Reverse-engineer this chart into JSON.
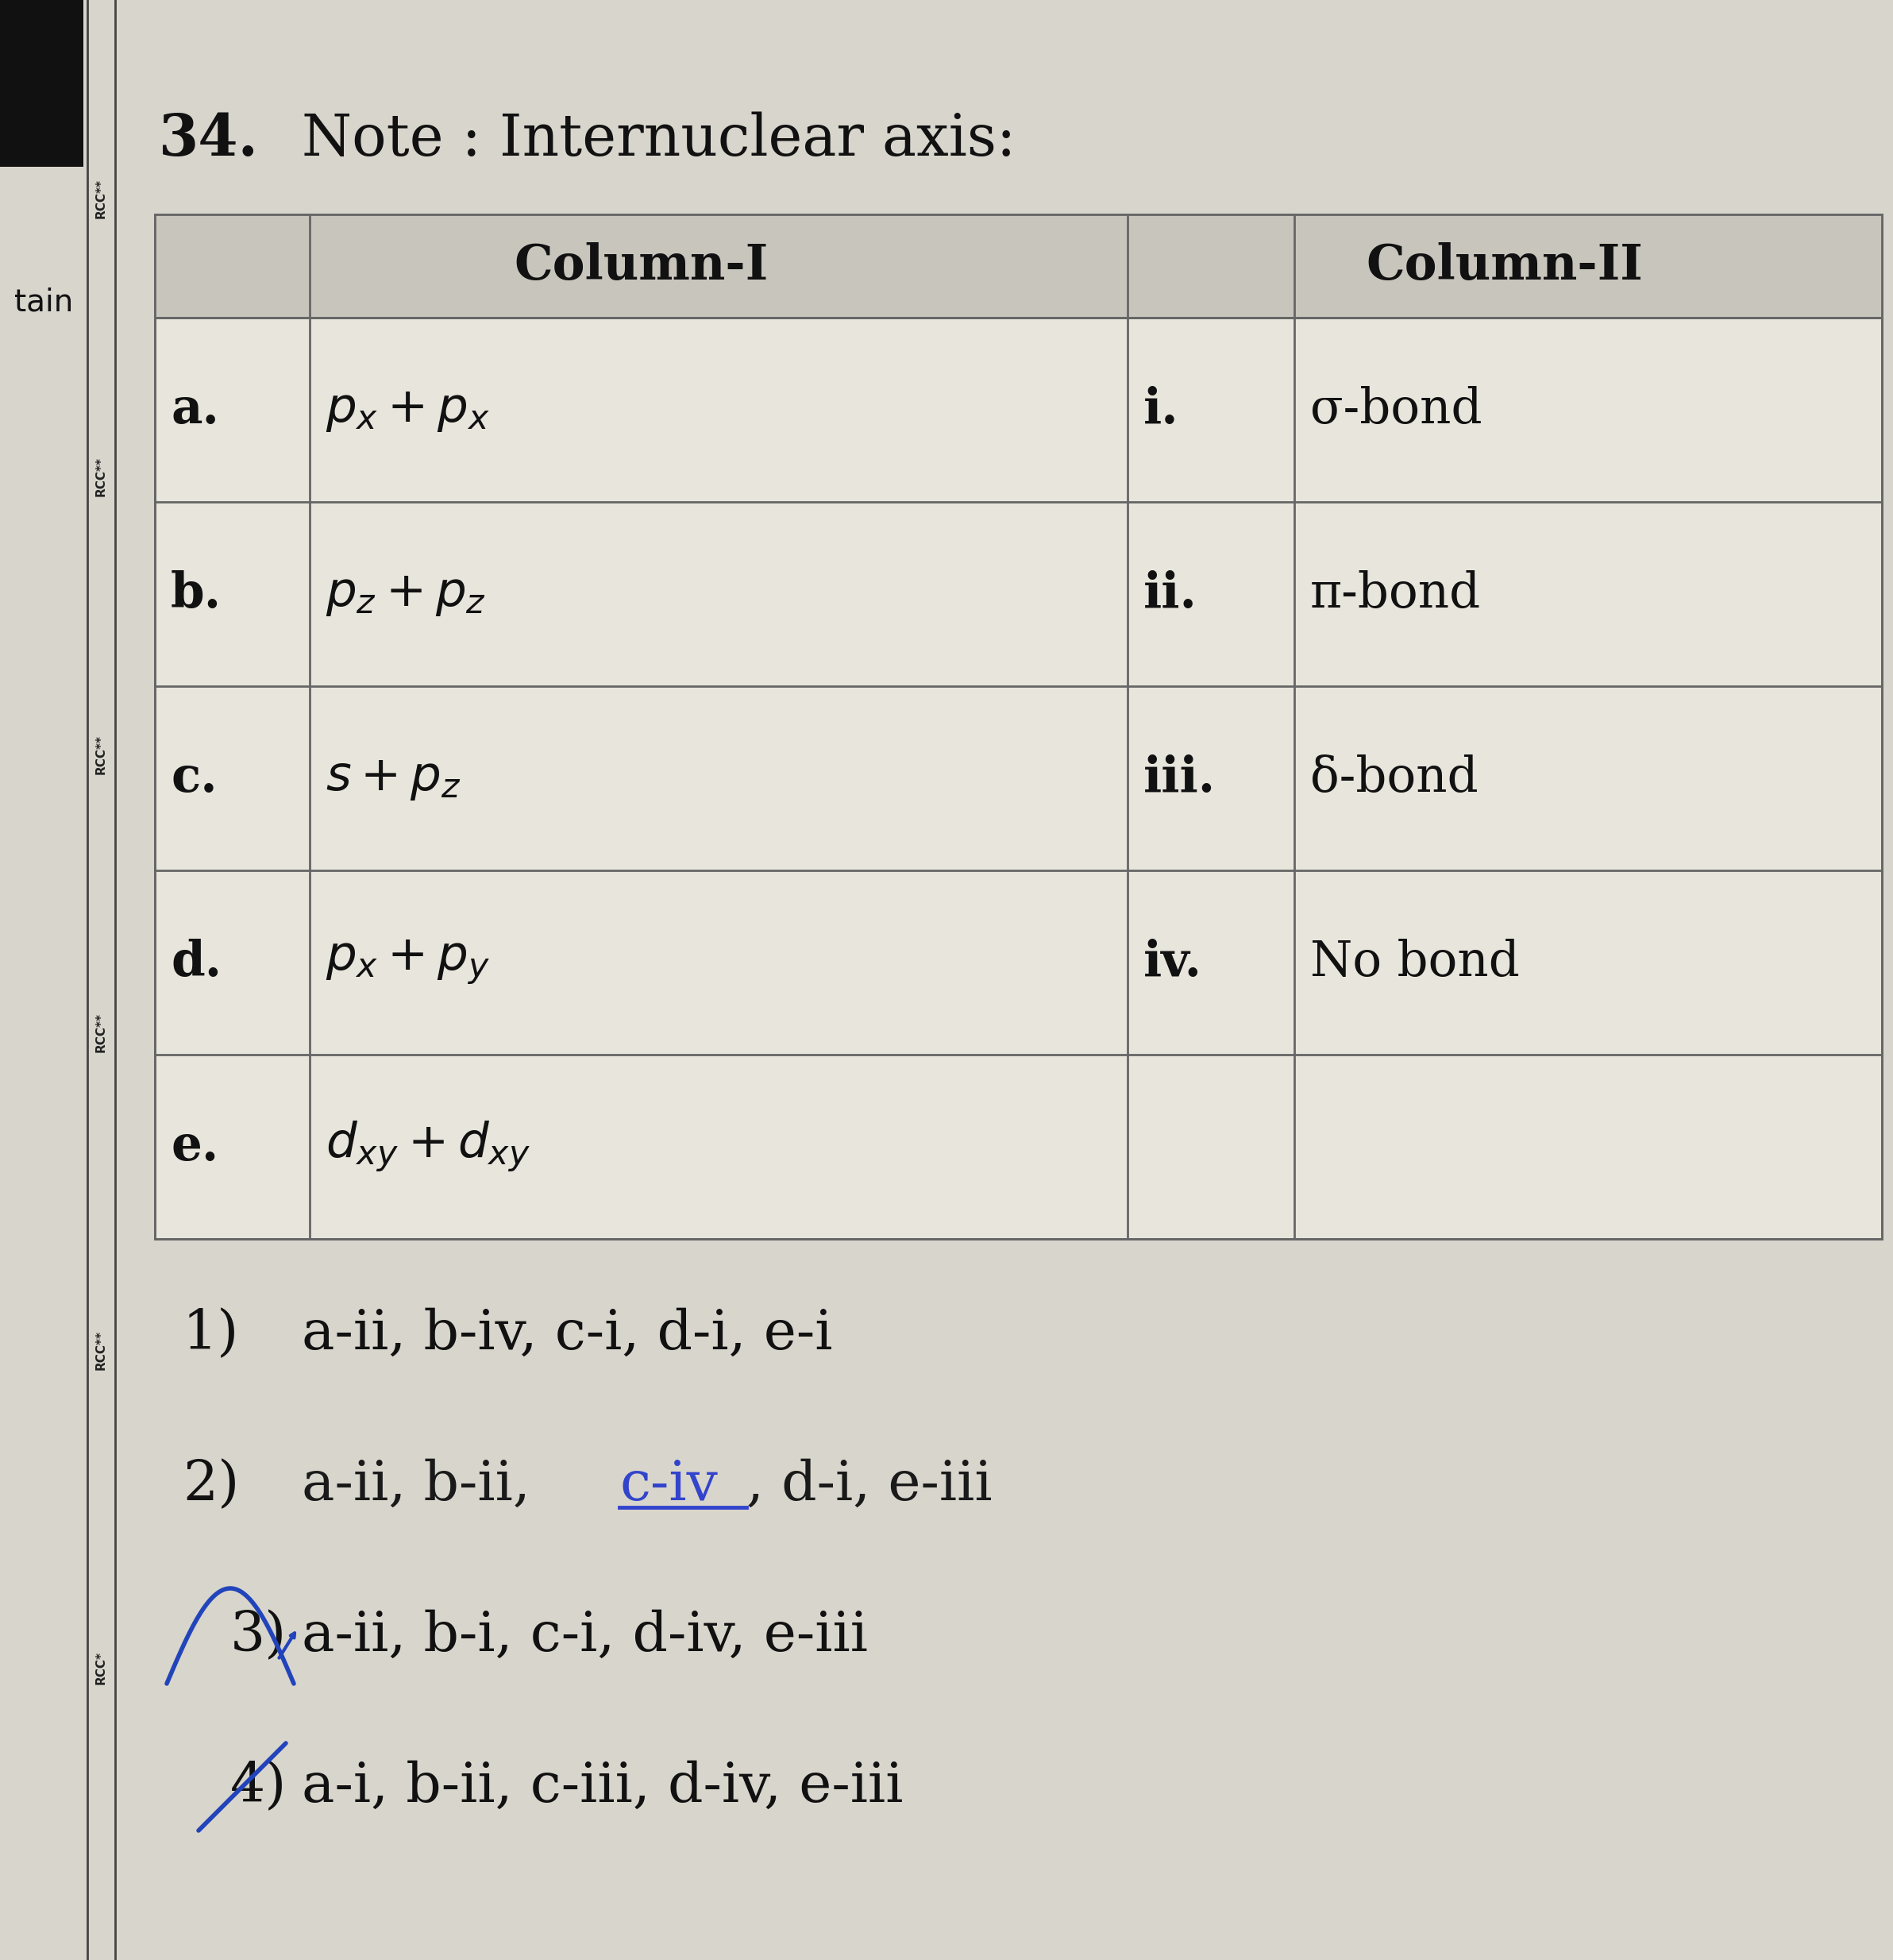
{
  "question_number": "34.",
  "title": "Note : Internuclear axis:",
  "col1_header": "Column-I",
  "col2_header": "Column-II",
  "rows": [
    {
      "left_label": "a.",
      "left_content": "$p_x + p_x$",
      "right_label": "i.",
      "right_content": "σ-bond"
    },
    {
      "left_label": "b.",
      "left_content": "$p_z + p_z$",
      "right_label": "ii.",
      "right_content": "π-bond"
    },
    {
      "left_label": "c.",
      "left_content": "$s + p_z$",
      "right_label": "iii.",
      "right_content": "δ-bond"
    },
    {
      "left_label": "d.",
      "left_content": "$p_x + p_y$",
      "right_label": "iv.",
      "right_content": "No bond"
    },
    {
      "left_label": "e.",
      "left_content": "$d_{xy} + d_{xy}$",
      "right_label": "",
      "right_content": ""
    }
  ],
  "options": [
    {
      "number": "1)",
      "text": "a-ii, b-iv, c-i, d-i, e-i"
    },
    {
      "number": "2)",
      "text_parts": [
        [
          "a-ii, b-ii, ",
          false,
          "#1a1a1a"
        ],
        [
          "c-iv",
          true,
          "#3344cc"
        ],
        [
          ", d-i, e-iii",
          false,
          "#1a1a1a"
        ]
      ]
    },
    {
      "number": "3)",
      "text": "a-ii, b-i, c-i, d-iv, e-iii",
      "arrow": true
    },
    {
      "number": "4)",
      "text": "a-i, b-ii, c-iii, d-iv, e-iii",
      "arrow": true
    }
  ],
  "bg_color": "#d8d5cc",
  "table_bg": "#e8e5dc",
  "header_bg": "#c8c5bc",
  "text_color": "#111111",
  "font_size_title": 52,
  "font_size_table": 44,
  "font_size_options": 50,
  "side_line_color": "#555555",
  "side_text_color": "#333333"
}
